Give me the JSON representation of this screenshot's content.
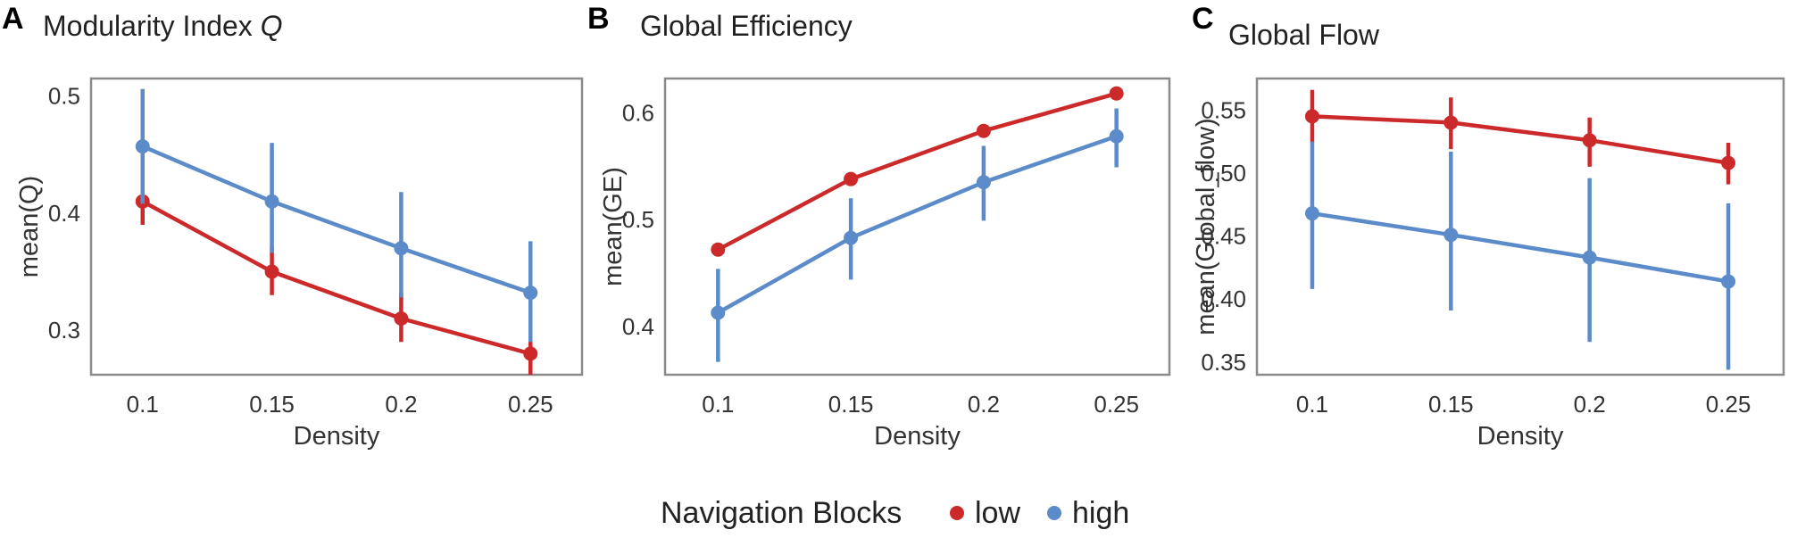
{
  "legend": {
    "title": "Navigation Blocks",
    "items": [
      {
        "label": "low",
        "color": "#CC2A2A"
      },
      {
        "label": "high",
        "color": "#5B8BC9"
      }
    ]
  },
  "chart_data": [
    {
      "type": "line",
      "letter": "A",
      "title": "Modularity Index",
      "title_italic": "Q",
      "xlabel": "Density",
      "ylabel": "mean(Q)",
      "categories": [
        "0.1",
        "0.15",
        "0.2",
        "0.25"
      ],
      "ylim": [
        0.262,
        0.515
      ],
      "yticks": [
        0.3,
        0.4,
        0.5
      ],
      "ytick_labels": [
        "0.3",
        "0.4",
        "0.5"
      ],
      "grid": false,
      "legend_position": "bottom",
      "series": [
        {
          "name": "low",
          "color": "#CC2A2A",
          "values": [
            0.41,
            0.35,
            0.31,
            0.28
          ],
          "err_low": [
            0.39,
            0.33,
            0.29,
            0.262
          ],
          "err_high": [
            0.432,
            0.372,
            0.332,
            0.3
          ]
        },
        {
          "name": "high",
          "color": "#5B8BC9",
          "values": [
            0.457,
            0.41,
            0.37,
            0.332
          ],
          "err_low": [
            0.408,
            0.366,
            0.328,
            0.29
          ],
          "err_high": [
            0.506,
            0.46,
            0.418,
            0.376
          ]
        }
      ]
    },
    {
      "type": "line",
      "letter": "B",
      "title": "Global Efficiency",
      "xlabel": "Density",
      "ylabel": "mean(GE)",
      "categories": [
        "0.1",
        "0.15",
        "0.2",
        "0.25"
      ],
      "ylim": [
        0.355,
        0.632
      ],
      "yticks": [
        0.4,
        0.5,
        0.6
      ],
      "ytick_labels": [
        "0.4",
        "0.5",
        "0.6"
      ],
      "grid": false,
      "legend_position": "bottom",
      "series": [
        {
          "name": "low",
          "color": "#CC2A2A",
          "values": [
            0.472,
            0.538,
            0.583,
            0.618
          ],
          "err_low": [
            0.466,
            0.533,
            0.579,
            0.613
          ],
          "err_high": [
            0.478,
            0.543,
            0.587,
            0.623
          ]
        },
        {
          "name": "high",
          "color": "#5B8BC9",
          "values": [
            0.413,
            0.483,
            0.535,
            0.578
          ],
          "err_low": [
            0.367,
            0.444,
            0.499,
            0.549
          ],
          "err_high": [
            0.454,
            0.52,
            0.569,
            0.604
          ]
        }
      ]
    },
    {
      "type": "line",
      "letter": "C",
      "title": "Global Flow",
      "xlabel": "Density",
      "ylabel": "mean(Global_flow)",
      "categories": [
        "0.1",
        "0.15",
        "0.2",
        "0.25"
      ],
      "ylim": [
        0.34,
        0.575
      ],
      "yticks": [
        0.35,
        0.4,
        0.45,
        0.5,
        0.55
      ],
      "ytick_labels": [
        "0.35",
        "0.40",
        "0.45",
        "0.50",
        "0.55"
      ],
      "grid": false,
      "legend_position": "bottom",
      "series": [
        {
          "name": "low",
          "color": "#CC2A2A",
          "values": [
            0.545,
            0.54,
            0.526,
            0.508
          ],
          "err_low": [
            0.524,
            0.519,
            0.505,
            0.491
          ],
          "err_high": [
            0.566,
            0.56,
            0.544,
            0.524
          ]
        },
        {
          "name": "high",
          "color": "#5B8BC9",
          "values": [
            0.468,
            0.451,
            0.433,
            0.414
          ],
          "err_low": [
            0.408,
            0.391,
            0.366,
            0.344
          ],
          "err_high": [
            0.525,
            0.517,
            0.496,
            0.476
          ]
        }
      ]
    }
  ]
}
